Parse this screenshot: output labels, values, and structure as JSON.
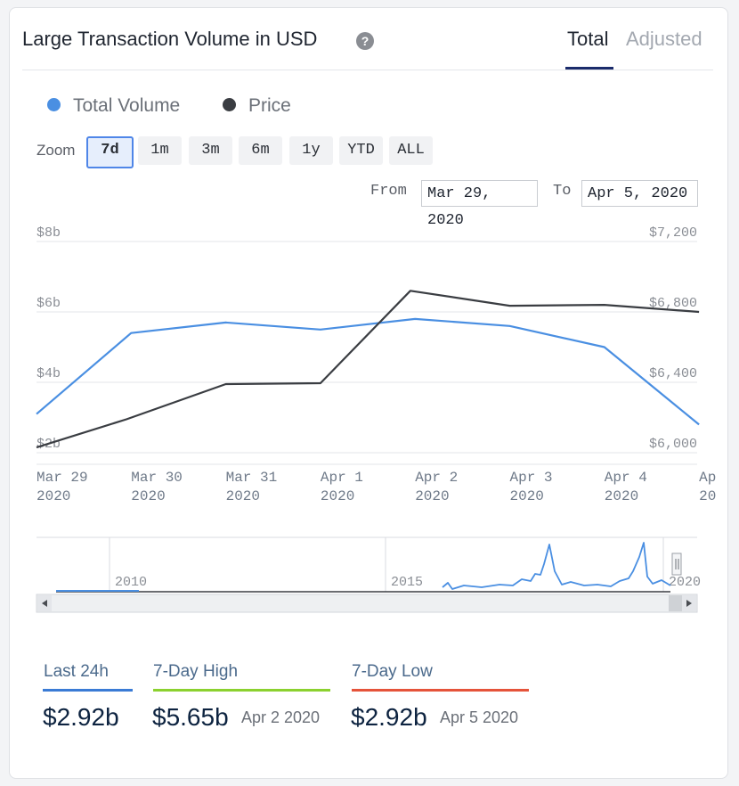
{
  "header": {
    "title": "Large Transaction Volume in USD",
    "help_glyph": "?",
    "tabs": [
      {
        "label": "Total",
        "active": true
      },
      {
        "label": "Adjusted",
        "active": false
      }
    ]
  },
  "legend": [
    {
      "label": "Total Volume",
      "color": "#4a8fe2"
    },
    {
      "label": "Price",
      "color": "#3a3d42"
    }
  ],
  "zoom": {
    "label": "Zoom",
    "options": [
      "7d",
      "1m",
      "3m",
      "6m",
      "1y",
      "YTD",
      "ALL"
    ],
    "active": "7d"
  },
  "range": {
    "from_label": "From",
    "from_value": "Mar 29, 2020",
    "to_label": "To",
    "to_value": "Apr 5, 2020"
  },
  "chart_data": {
    "type": "line",
    "x": [
      "Mar 29 2020",
      "Mar 30 2020",
      "Mar 31 2020",
      "Apr 1 2020",
      "Apr 2 2020",
      "Apr 3 2020",
      "Apr 4 2020",
      "Apr 5 2020"
    ],
    "x_tick_labels": [
      {
        "l1": "Mar 29",
        "l2": "2020"
      },
      {
        "l1": "Mar 30",
        "l2": "2020"
      },
      {
        "l1": "Mar 31",
        "l2": "2020"
      },
      {
        "l1": "Apr 1",
        "l2": "2020"
      },
      {
        "l1": "Apr 2",
        "l2": "2020"
      },
      {
        "l1": "Apr 3",
        "l2": "2020"
      },
      {
        "l1": "Apr 4",
        "l2": "2020"
      },
      {
        "l1": "Ap",
        "l2": "20"
      }
    ],
    "series": [
      {
        "name": "Total Volume",
        "axis": "left",
        "color": "#4a8fe2",
        "x": [
          0,
          1,
          2,
          3,
          4,
          5,
          6,
          7
        ],
        "values": [
          3.1,
          5.4,
          5.7,
          5.5,
          5.8,
          5.6,
          5.0,
          2.8
        ]
      },
      {
        "name": "Price",
        "axis": "right",
        "color": "#3a3d42",
        "x": [
          0,
          0.95,
          2.0,
          3.0,
          3.95,
          5.0,
          6.0,
          7.0
        ],
        "values": [
          6030,
          6190,
          6390,
          6395,
          6920,
          6835,
          6840,
          6800
        ]
      }
    ],
    "y_left": {
      "ticks": [
        "$2b",
        "$4b",
        "$6b",
        "$8b"
      ],
      "range": [
        2,
        8
      ]
    },
    "y_right": {
      "ticks": [
        "$6,000",
        "$6,400",
        "$6,800",
        "$7,200"
      ],
      "range": [
        6000,
        7200
      ]
    },
    "grid": true,
    "navigator": {
      "labels": [
        "2010",
        "2015",
        "2020"
      ],
      "series_color": "#4a8fe2"
    }
  },
  "stats": [
    {
      "label": "Last 24h",
      "value": "$2.92b",
      "date": "",
      "color": "#3a7bd5"
    },
    {
      "label": "7-Day High",
      "value": "$5.65b",
      "date": "Apr 2 2020",
      "color": "#8bd12f"
    },
    {
      "label": "7-Day Low",
      "value": "$2.92b",
      "date": "Apr 5 2020",
      "color": "#e5533a"
    }
  ]
}
